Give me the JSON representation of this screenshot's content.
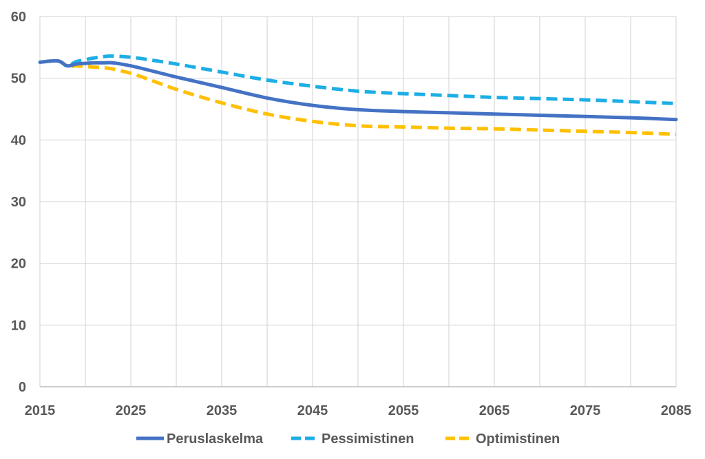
{
  "chart_data": {
    "type": "line",
    "title": "",
    "xlabel": "",
    "ylabel": "",
    "xlim": [
      2015,
      2085
    ],
    "ylim": [
      0,
      60
    ],
    "x_ticks": [
      2015,
      2025,
      2035,
      2045,
      2055,
      2065,
      2075,
      2085
    ],
    "x_tick_labels": [
      "2015",
      "2025",
      "2035",
      "2045",
      "2055",
      "2065",
      "2075",
      "2085"
    ],
    "x_gridlines": [
      2015,
      2020,
      2025,
      2030,
      2035,
      2040,
      2045,
      2050,
      2055,
      2060,
      2065,
      2070,
      2075,
      2080,
      2085
    ],
    "y_ticks": [
      0,
      10,
      20,
      30,
      40,
      50,
      60
    ],
    "y_tick_labels": [
      "0",
      "10",
      "20",
      "30",
      "40",
      "50",
      "60"
    ],
    "grid": true,
    "legend_position": "bottom",
    "series": [
      {
        "name": "Peruslaskelma",
        "color": "#4472C4",
        "style": "solid",
        "x": [
          2015,
          2017,
          2018,
          2019,
          2020,
          2021,
          2022,
          2023,
          2025,
          2027,
          2030,
          2035,
          2040,
          2045,
          2050,
          2055,
          2060,
          2065,
          2070,
          2075,
          2080,
          2085
        ],
        "y": [
          52.6,
          52.8,
          52.0,
          52.3,
          52.4,
          52.5,
          52.5,
          52.5,
          52.0,
          51.3,
          50.2,
          48.5,
          46.8,
          45.6,
          44.9,
          44.6,
          44.4,
          44.2,
          44.0,
          43.8,
          43.6,
          43.3
        ]
      },
      {
        "name": "Pessimistinen",
        "color": "#1CAEE4",
        "style": "dashed",
        "x": [
          2015,
          2017,
          2018,
          2019,
          2020,
          2021,
          2022,
          2023,
          2025,
          2027,
          2030,
          2035,
          2040,
          2045,
          2050,
          2055,
          2060,
          2065,
          2070,
          2075,
          2080,
          2085
        ],
        "y": [
          52.6,
          52.8,
          52.0,
          52.7,
          53.0,
          53.3,
          53.5,
          53.6,
          53.4,
          53.0,
          52.3,
          51.0,
          49.7,
          48.7,
          47.9,
          47.5,
          47.2,
          46.9,
          46.7,
          46.5,
          46.2,
          45.9
        ]
      },
      {
        "name": "Optimistinen",
        "color": "#FFC000",
        "style": "dashed",
        "x": [
          2015,
          2017,
          2018,
          2019,
          2020,
          2021,
          2022,
          2023,
          2025,
          2027,
          2030,
          2035,
          2040,
          2045,
          2050,
          2055,
          2060,
          2065,
          2070,
          2075,
          2080,
          2085
        ],
        "y": [
          52.6,
          52.8,
          52.0,
          52.0,
          51.9,
          51.8,
          51.7,
          51.5,
          50.8,
          49.8,
          48.2,
          46.0,
          44.2,
          43.0,
          42.3,
          42.1,
          41.9,
          41.8,
          41.6,
          41.4,
          41.2,
          40.9
        ]
      }
    ]
  }
}
